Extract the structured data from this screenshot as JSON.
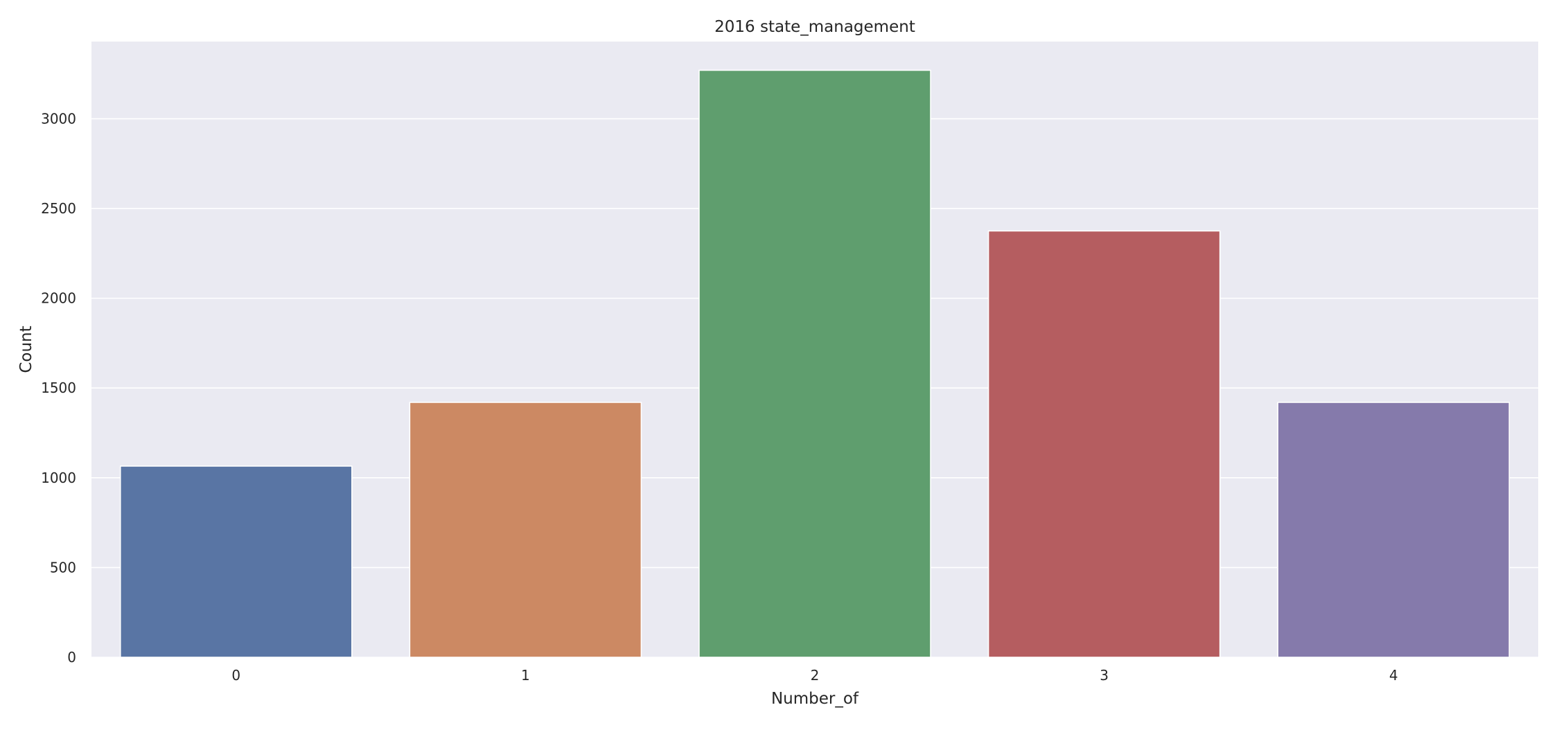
{
  "chart_data": {
    "type": "bar",
    "title": "2016 state_management",
    "xlabel": "Number_of",
    "ylabel": "Count",
    "categories": [
      "0",
      "1",
      "2",
      "3",
      "4"
    ],
    "values": [
      1065,
      1420,
      3270,
      2375,
      1420
    ],
    "ylim": [
      0,
      3430
    ],
    "yticks": [
      0,
      500,
      1000,
      1500,
      2000,
      2500,
      3000
    ],
    "grid": true,
    "legend": "none",
    "colors": [
      "#5975a4",
      "#cc8963",
      "#5f9e6e",
      "#b55d60",
      "#857aab"
    ],
    "background_color": "#eaeaf2",
    "grid_color": "#ffffff"
  }
}
